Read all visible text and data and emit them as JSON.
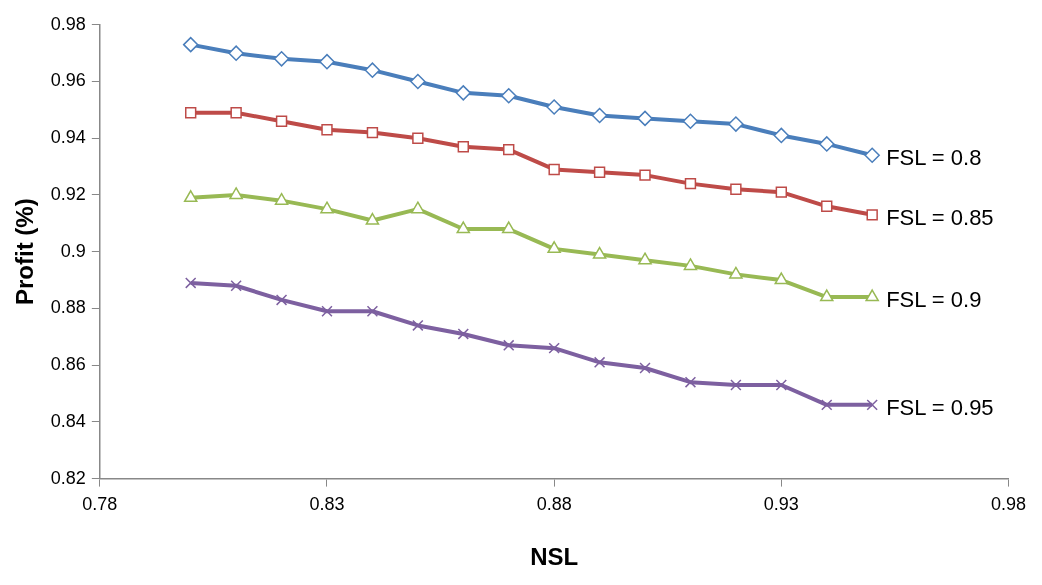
{
  "chart_data": {
    "type": "line",
    "xlabel": "NSL",
    "ylabel": "Profit (%)",
    "x": [
      0.8,
      0.81,
      0.82,
      0.83,
      0.84,
      0.85,
      0.86,
      0.87,
      0.88,
      0.89,
      0.9,
      0.91,
      0.92,
      0.93,
      0.94,
      0.95
    ],
    "xlim": [
      0.78,
      0.98
    ],
    "xticks": [
      0.78,
      0.83,
      0.88,
      0.93,
      0.98
    ],
    "ylim": [
      0.82,
      0.98
    ],
    "yticks": [
      0.82,
      0.84,
      0.86,
      0.88,
      0.9,
      0.92,
      0.94,
      0.96,
      0.98
    ],
    "grid": false,
    "legend": false,
    "series": [
      {
        "name": "FSL = 0.8",
        "color": "#4a7ebb",
        "marker": "diamond",
        "values": [
          0.973,
          0.97,
          0.968,
          0.967,
          0.964,
          0.96,
          0.956,
          0.955,
          0.951,
          0.948,
          0.947,
          0.946,
          0.945,
          0.941,
          0.938,
          0.934
        ]
      },
      {
        "name": "FSL = 0.85",
        "color": "#be4b48",
        "marker": "square",
        "values": [
          0.949,
          0.949,
          0.946,
          0.943,
          0.942,
          0.94,
          0.937,
          0.936,
          0.929,
          0.928,
          0.927,
          0.924,
          0.922,
          0.921,
          0.916,
          0.913
        ]
      },
      {
        "name": "FSL = 0.9",
        "color": "#98b954",
        "marker": "triangle",
        "values": [
          0.919,
          0.92,
          0.918,
          0.915,
          0.911,
          0.915,
          0.908,
          0.908,
          0.901,
          0.899,
          0.897,
          0.895,
          0.892,
          0.89,
          0.884,
          0.884
        ]
      },
      {
        "name": "FSL = 0.95",
        "color": "#7d60a0",
        "marker": "cross",
        "values": [
          0.889,
          0.888,
          0.883,
          0.879,
          0.879,
          0.874,
          0.871,
          0.867,
          0.866,
          0.861,
          0.859,
          0.854,
          0.853,
          0.853,
          0.846,
          0.846
        ]
      }
    ]
  }
}
